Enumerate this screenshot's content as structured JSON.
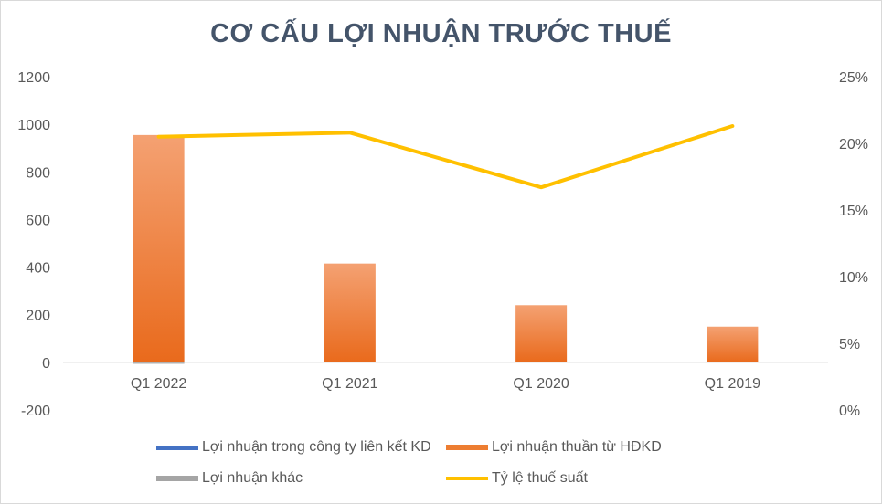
{
  "chart_data": {
    "type": "bar",
    "title": "CƠ CẤU LỢI NHUẬN TRƯỚC THUẾ",
    "categories": [
      "Q1 2022",
      "Q1 2021",
      "Q1 2020",
      "Q1 2019"
    ],
    "y_left": {
      "ticks": [
        "1200",
        "1000",
        "800",
        "600",
        "400",
        "200",
        "0",
        "-200"
      ],
      "ylim": [
        -200,
        1200
      ]
    },
    "y_right": {
      "ticks": [
        "25%",
        "20%",
        "15%",
        "10%",
        "5%",
        "0%"
      ],
      "ylim": [
        0,
        0.25
      ]
    },
    "series": [
      {
        "name": "Lợi nhuận trong công ty liên kết KD",
        "kind": "bar",
        "color": "#4472c4",
        "values": [
          0,
          0,
          0,
          0
        ]
      },
      {
        "name": "Lợi nhuận thuần từ HĐKD",
        "kind": "bar",
        "color": "#ed7d31",
        "values": [
          955,
          415,
          240,
          150
        ]
      },
      {
        "name": "Lợi nhuận khác",
        "kind": "bar",
        "color": "#a5a5a5",
        "values": [
          -5,
          0,
          0,
          0
        ]
      },
      {
        "name": "Tỷ lệ thuế suất",
        "kind": "line",
        "axis": "right",
        "color": "#ffc000",
        "values": [
          0.205,
          0.208,
          0.167,
          0.213
        ]
      }
    ],
    "legend_position": "bottom",
    "grid": false
  }
}
